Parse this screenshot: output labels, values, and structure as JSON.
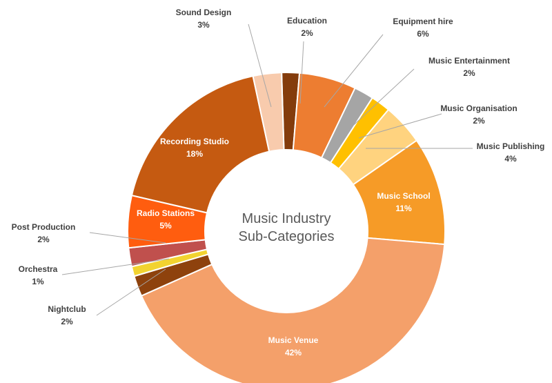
{
  "chart_data": {
    "type": "pie",
    "variant": "donut",
    "center_label": [
      "Music Industry",
      "Sub-Categories"
    ],
    "categories": [
      "Education",
      "Equipment hire",
      "Music Entertainment",
      "Music Organisation",
      "Music Publishing",
      "Music School",
      "Music Venue",
      "Nightclub",
      "Orchestra",
      "Post Production",
      "Radio Stations",
      "Recording Studio",
      "Sound Design"
    ],
    "value_labels": [
      "2%",
      "6%",
      "2%",
      "2%",
      "4%",
      "11%",
      "42%",
      "2%",
      "1%",
      "2%",
      "5%",
      "18%",
      "3%"
    ],
    "values": [
      1.8,
      5.8,
      2.0,
      2.0,
      4.2,
      11.0,
      42.0,
      2.1,
      1.0,
      1.9,
      5.3,
      18.0,
      2.9
    ],
    "colors": [
      "#843c0c",
      "#ed7d31",
      "#a5a5a5",
      "#ffc000",
      "#ffd37f",
      "#f69b27",
      "#f4a06a",
      "#8e420d",
      "#f2d330",
      "#c0504d",
      "#ff5d0f",
      "#c55a11",
      "#f8cbad"
    ],
    "legend": "none"
  }
}
